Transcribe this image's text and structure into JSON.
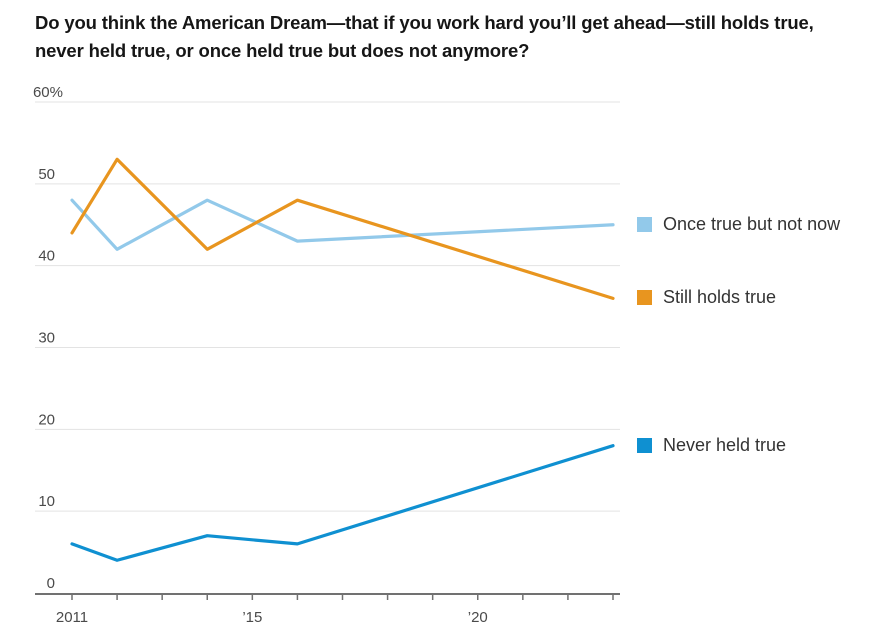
{
  "title": {
    "line1": "Do you think the American Dream—that if you work hard you’ll get ahead—still holds true,",
    "line2": "never held true, or once held true but does not anymore?"
  },
  "chart_data": {
    "type": "line",
    "x": [
      2011,
      2012,
      2014,
      2016,
      2023
    ],
    "series": [
      {
        "name": "Once true but not now",
        "color": "#92c9ea",
        "values": [
          48,
          42,
          48,
          43,
          45
        ]
      },
      {
        "name": "Still holds true",
        "color": "#e8951f",
        "values": [
          44,
          53,
          42,
          48,
          36
        ]
      },
      {
        "name": "Never held true",
        "color": "#0f90d1",
        "values": [
          6,
          4,
          7,
          6,
          18
        ]
      }
    ],
    "ylim": [
      0,
      60
    ],
    "xlim": [
      2011,
      2023
    ],
    "y_ticks": [
      {
        "value": 60,
        "label": "60%"
      },
      {
        "value": 50,
        "label": "50"
      },
      {
        "value": 40,
        "label": "40"
      },
      {
        "value": 30,
        "label": "30"
      },
      {
        "value": 20,
        "label": "20"
      },
      {
        "value": 10,
        "label": "10"
      },
      {
        "value": 0,
        "label": "0"
      }
    ],
    "x_tick_years": [
      2011,
      2012,
      2013,
      2014,
      2015,
      2016,
      2017,
      2018,
      2019,
      2020,
      2021,
      2022,
      2023
    ],
    "x_labels": [
      {
        "year": 2011,
        "label": "2011"
      },
      {
        "year": 2015,
        "label": "’15"
      },
      {
        "year": 2020,
        "label": "’20"
      }
    ],
    "grid": true,
    "legend_position": "right-aligned-to-line-ends"
  },
  "legend": {
    "items": [
      {
        "label": "Once true but not now",
        "color": "#92c9ea"
      },
      {
        "label": "Still holds true",
        "color": "#e8951f"
      },
      {
        "label": "Never held true",
        "color": "#0f90d1"
      }
    ]
  },
  "colors": {
    "title_text": "#161616",
    "axis_text": "#4a4a4a",
    "gridline": "#e3e3e3",
    "axis_line": "#717171",
    "background": "#ffffff"
  }
}
